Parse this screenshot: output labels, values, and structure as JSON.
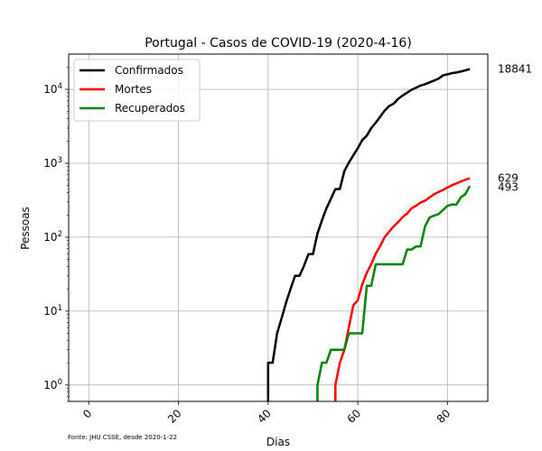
{
  "chart_data": {
    "type": "line",
    "title": "Portugal - Casos de COVID-19 (2020-4-16)",
    "xlabel": "Dias",
    "ylabel": "Pessoas",
    "yscale": "log",
    "xlim": [
      -4.5,
      89
    ],
    "ylim": [
      0.6,
      30000
    ],
    "xticks": [
      0,
      20,
      40,
      60,
      80
    ],
    "yticks": [
      1,
      10,
      100,
      1000,
      10000
    ],
    "ytick_labels": [
      {
        "base": "10",
        "exp": "0"
      },
      {
        "base": "10",
        "exp": "1"
      },
      {
        "base": "10",
        "exp": "2"
      },
      {
        "base": "10",
        "exp": "3"
      },
      {
        "base": "10",
        "exp": "4"
      }
    ],
    "grid": true,
    "legend": "top-left",
    "source_note": "Fonte: JHU CSSE, desde 2020-1-22",
    "series": [
      {
        "name": "Confirmados",
        "color": "#000000",
        "end_label": "18841",
        "points": [
          [
            40,
            0.3
          ],
          [
            40,
            2
          ],
          [
            41,
            2
          ],
          [
            42,
            5
          ],
          [
            43,
            8
          ],
          [
            44,
            13
          ],
          [
            45,
            20
          ],
          [
            46,
            30
          ],
          [
            47,
            30
          ],
          [
            48,
            41
          ],
          [
            49,
            59
          ],
          [
            50,
            59
          ],
          [
            51,
            112
          ],
          [
            52,
            169
          ],
          [
            53,
            245
          ],
          [
            54,
            331
          ],
          [
            55,
            448
          ],
          [
            56,
            448
          ],
          [
            57,
            785
          ],
          [
            58,
            1020
          ],
          [
            59,
            1280
          ],
          [
            60,
            1600
          ],
          [
            61,
            2060
          ],
          [
            62,
            2362
          ],
          [
            63,
            2995
          ],
          [
            64,
            3544
          ],
          [
            65,
            4268
          ],
          [
            66,
            5170
          ],
          [
            67,
            5962
          ],
          [
            68,
            6408
          ],
          [
            69,
            7443
          ],
          [
            70,
            8251
          ],
          [
            71,
            9034
          ],
          [
            72,
            9886
          ],
          [
            73,
            10524
          ],
          [
            74,
            11278
          ],
          [
            75,
            11730
          ],
          [
            76,
            12442
          ],
          [
            77,
            13141
          ],
          [
            78,
            13956
          ],
          [
            79,
            15472
          ],
          [
            80,
            15987
          ],
          [
            81,
            16585
          ],
          [
            82,
            16934
          ],
          [
            83,
            17448
          ],
          [
            84,
            18091
          ],
          [
            85,
            18841
          ]
        ]
      },
      {
        "name": "Mortes",
        "color": "#ff0000",
        "end_label": "629",
        "points": [
          [
            55,
            0.3
          ],
          [
            55,
            1
          ],
          [
            56,
            2
          ],
          [
            57,
            3
          ],
          [
            58,
            6
          ],
          [
            59,
            12
          ],
          [
            60,
            14
          ],
          [
            61,
            23
          ],
          [
            62,
            33
          ],
          [
            63,
            43
          ],
          [
            64,
            60
          ],
          [
            65,
            76
          ],
          [
            66,
            100
          ],
          [
            67,
            119
          ],
          [
            68,
            140
          ],
          [
            69,
            160
          ],
          [
            70,
            187
          ],
          [
            71,
            209
          ],
          [
            72,
            246
          ],
          [
            73,
            266
          ],
          [
            74,
            295
          ],
          [
            75,
            311
          ],
          [
            76,
            345
          ],
          [
            77,
            380
          ],
          [
            78,
            409
          ],
          [
            79,
            435
          ],
          [
            80,
            470
          ],
          [
            81,
            504
          ],
          [
            82,
            535
          ],
          [
            83,
            567
          ],
          [
            84,
            599
          ],
          [
            85,
            629
          ]
        ]
      },
      {
        "name": "Recuperados",
        "color": "#008000",
        "end_label": "493",
        "points": [
          [
            51,
            0.3
          ],
          [
            51,
            1
          ],
          [
            52,
            2
          ],
          [
            53,
            2
          ],
          [
            54,
            3
          ],
          [
            55,
            3
          ],
          [
            56,
            3
          ],
          [
            57,
            3
          ],
          [
            58,
            5
          ],
          [
            59,
            5
          ],
          [
            60,
            5
          ],
          [
            61,
            5
          ],
          [
            62,
            22
          ],
          [
            63,
            22
          ],
          [
            64,
            43
          ],
          [
            65,
            43
          ],
          [
            66,
            43
          ],
          [
            67,
            43
          ],
          [
            68,
            43
          ],
          [
            69,
            43
          ],
          [
            70,
            43
          ],
          [
            71,
            68
          ],
          [
            72,
            68
          ],
          [
            73,
            75
          ],
          [
            74,
            75
          ],
          [
            75,
            140
          ],
          [
            76,
            184
          ],
          [
            77,
            196
          ],
          [
            78,
            205
          ],
          [
            79,
            233
          ],
          [
            80,
            266
          ],
          [
            81,
            277
          ],
          [
            82,
            277
          ],
          [
            83,
            347
          ],
          [
            84,
            383
          ],
          [
            85,
            493
          ]
        ]
      }
    ]
  }
}
